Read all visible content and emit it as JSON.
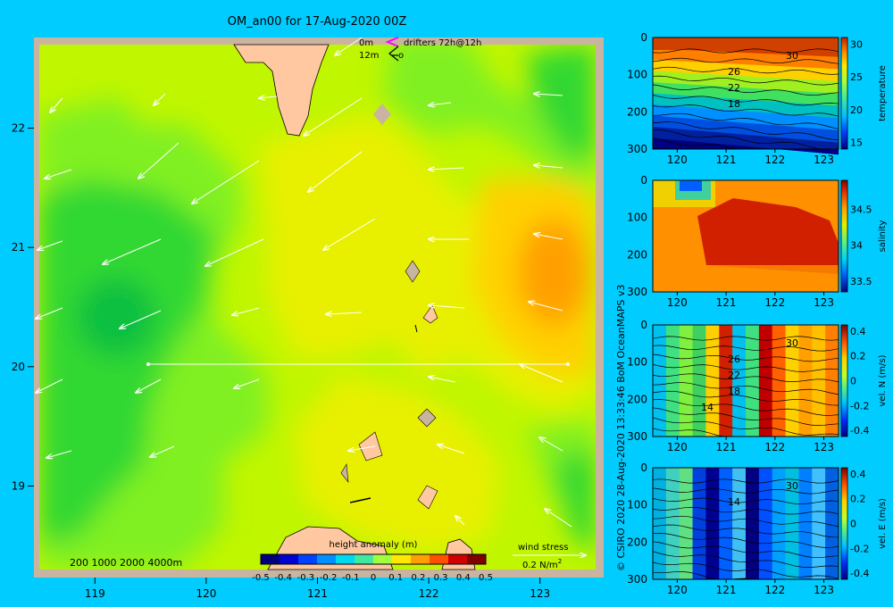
{
  "title": "OM_an00 for 17-Aug-2020 00Z",
  "credit": "© CSIRO 2020  28-Aug-2020 13:33:46 BoM OceanMAPS v3",
  "chart_data": [
    {
      "type": "heatmap",
      "kind": "map",
      "title": "OM_an00 for 17-Aug-2020 00Z",
      "xlim": [
        118.5,
        123.5
      ],
      "ylim": [
        18.3,
        22.7
      ],
      "x_ticks": [
        "119",
        "120",
        "121",
        "122",
        "123"
      ],
      "y_ticks": [
        "19",
        "20",
        "21",
        "22"
      ],
      "colorbar": {
        "label": "height anomaly (m)",
        "ticks": [
          "-0.5",
          "-0.4",
          "-0.3",
          "-0.2",
          "-0.1",
          "0",
          "0.1",
          "0.2",
          "0.3",
          "0.4",
          "0.5"
        ],
        "colors": [
          "#00007f",
          "#0000d0",
          "#0040ff",
          "#0090ff",
          "#00d8f0",
          "#40e8a0",
          "#a0ff40",
          "#ffe800",
          "#ffa000",
          "#ff5000",
          "#d00000",
          "#800000"
        ]
      },
      "legend_top": {
        "line1": "0m",
        "line2": "12m",
        "drifters": "drifters 72h@12h"
      },
      "depth_legend": "200  1000  2000  4000m",
      "wind_legend": {
        "label": "wind stress",
        "scale": "0.2 N/m",
        "sup": "2"
      }
    },
    {
      "type": "heatmap",
      "kind": "section",
      "variable": "temperature",
      "x_ticks": [
        "120",
        "121",
        "122",
        "123"
      ],
      "xlim": [
        119.5,
        123.3
      ],
      "y_ticks": [
        "0",
        "100",
        "200",
        "300"
      ],
      "ylim": [
        0,
        300
      ],
      "colorbar": {
        "label": "temperature",
        "ticks": [
          "15",
          "20",
          "25",
          "30"
        ],
        "range": [
          14,
          31
        ]
      },
      "contour_labels": [
        "30",
        "26",
        "22",
        "18"
      ]
    },
    {
      "type": "heatmap",
      "kind": "section",
      "variable": "salinity",
      "x_ticks": [
        "120",
        "121",
        "122",
        "123"
      ],
      "xlim": [
        119.5,
        123.3
      ],
      "y_ticks": [
        "0",
        "100",
        "200",
        "300"
      ],
      "ylim": [
        0,
        300
      ],
      "colorbar": {
        "label": "salinity",
        "ticks": [
          "33.5",
          "34",
          "34.5"
        ],
        "range": [
          33.35,
          34.9
        ]
      }
    },
    {
      "type": "heatmap",
      "kind": "section",
      "variable": "vel. N",
      "x_ticks": [
        "120",
        "121",
        "122",
        "123"
      ],
      "xlim": [
        119.5,
        123.3
      ],
      "y_ticks": [
        "0",
        "100",
        "200",
        "300"
      ],
      "ylim": [
        0,
        300
      ],
      "colorbar": {
        "label": "vel. N  (m/s)",
        "ticks": [
          "0.4",
          "0.2",
          "0",
          "-0.2",
          "-0.4"
        ],
        "range": [
          -0.45,
          0.45
        ]
      },
      "contour_labels": [
        "30",
        "26",
        "22",
        "18",
        "14"
      ]
    },
    {
      "type": "heatmap",
      "kind": "section",
      "variable": "vel. E",
      "x_ticks": [
        "120",
        "121",
        "122",
        "123"
      ],
      "xlim": [
        119.5,
        123.3
      ],
      "y_ticks": [
        "0",
        "100",
        "200",
        "300"
      ],
      "ylim": [
        0,
        300
      ],
      "colorbar": {
        "label": "vel. E  (m/s)",
        "ticks": [
          "0.4",
          "0.2",
          "0",
          "-0.2",
          "-0.4"
        ],
        "range": [
          -0.45,
          0.45
        ]
      },
      "contour_labels": [
        "30",
        "14"
      ]
    }
  ]
}
